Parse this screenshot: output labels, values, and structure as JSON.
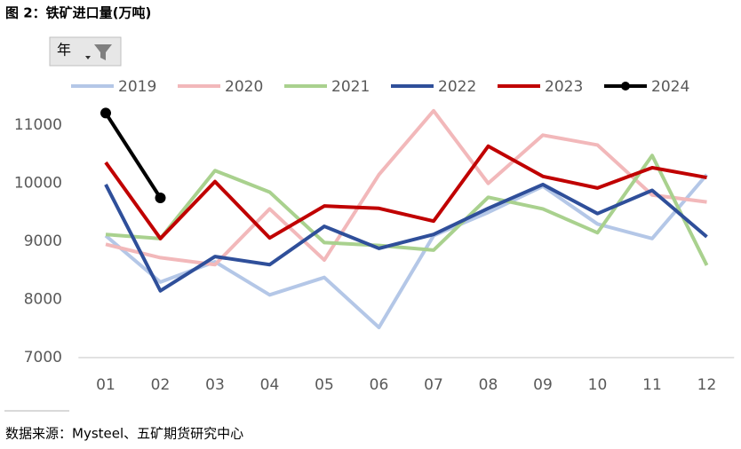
{
  "chart_data": {
    "type": "line",
    "title": "图 2：铁矿进口量(万吨)",
    "filter_label": "年",
    "source": "数据来源：Mysteel、五矿期货研究中心",
    "categories": [
      "01",
      "02",
      "03",
      "04",
      "05",
      "06",
      "07",
      "08",
      "09",
      "10",
      "11",
      "12"
    ],
    "ylim": [
      7000,
      11400
    ],
    "yticks": [
      7000,
      8000,
      9000,
      10000,
      11000
    ],
    "grid": false,
    "legend": "top",
    "series": [
      {
        "name": "2019",
        "color": "#b4c7e7",
        "values": [
          9100,
          8300,
          8650,
          8080,
          8380,
          7520,
          9100,
          9500,
          9950,
          9300,
          9050,
          10150
        ]
      },
      {
        "name": "2020",
        "color": "#f2b8ba",
        "values": [
          8950,
          8720,
          8600,
          9560,
          8680,
          10150,
          11250,
          10000,
          10830,
          10660,
          9800,
          9680
        ]
      },
      {
        "name": "2021",
        "color": "#a9d18e",
        "values": [
          9120,
          9050,
          10220,
          9850,
          8980,
          8930,
          8850,
          9760,
          9560,
          9150,
          10480,
          8590
        ]
      },
      {
        "name": "2022",
        "color": "#2f4f9a",
        "values": [
          9980,
          8150,
          8740,
          8600,
          9260,
          8880,
          9120,
          9570,
          9980,
          9480,
          9880,
          9080
        ]
      },
      {
        "name": "2023",
        "color": "#c00000",
        "values": [
          10360,
          9050,
          10030,
          9060,
          9610,
          9570,
          9350,
          10640,
          10120,
          9920,
          10270,
          10100
        ]
      },
      {
        "name": "2024",
        "color": "#000000",
        "markers": true,
        "values": [
          11210,
          9750,
          null,
          null,
          null,
          null,
          null,
          null,
          null,
          null,
          null,
          null
        ]
      }
    ]
  }
}
